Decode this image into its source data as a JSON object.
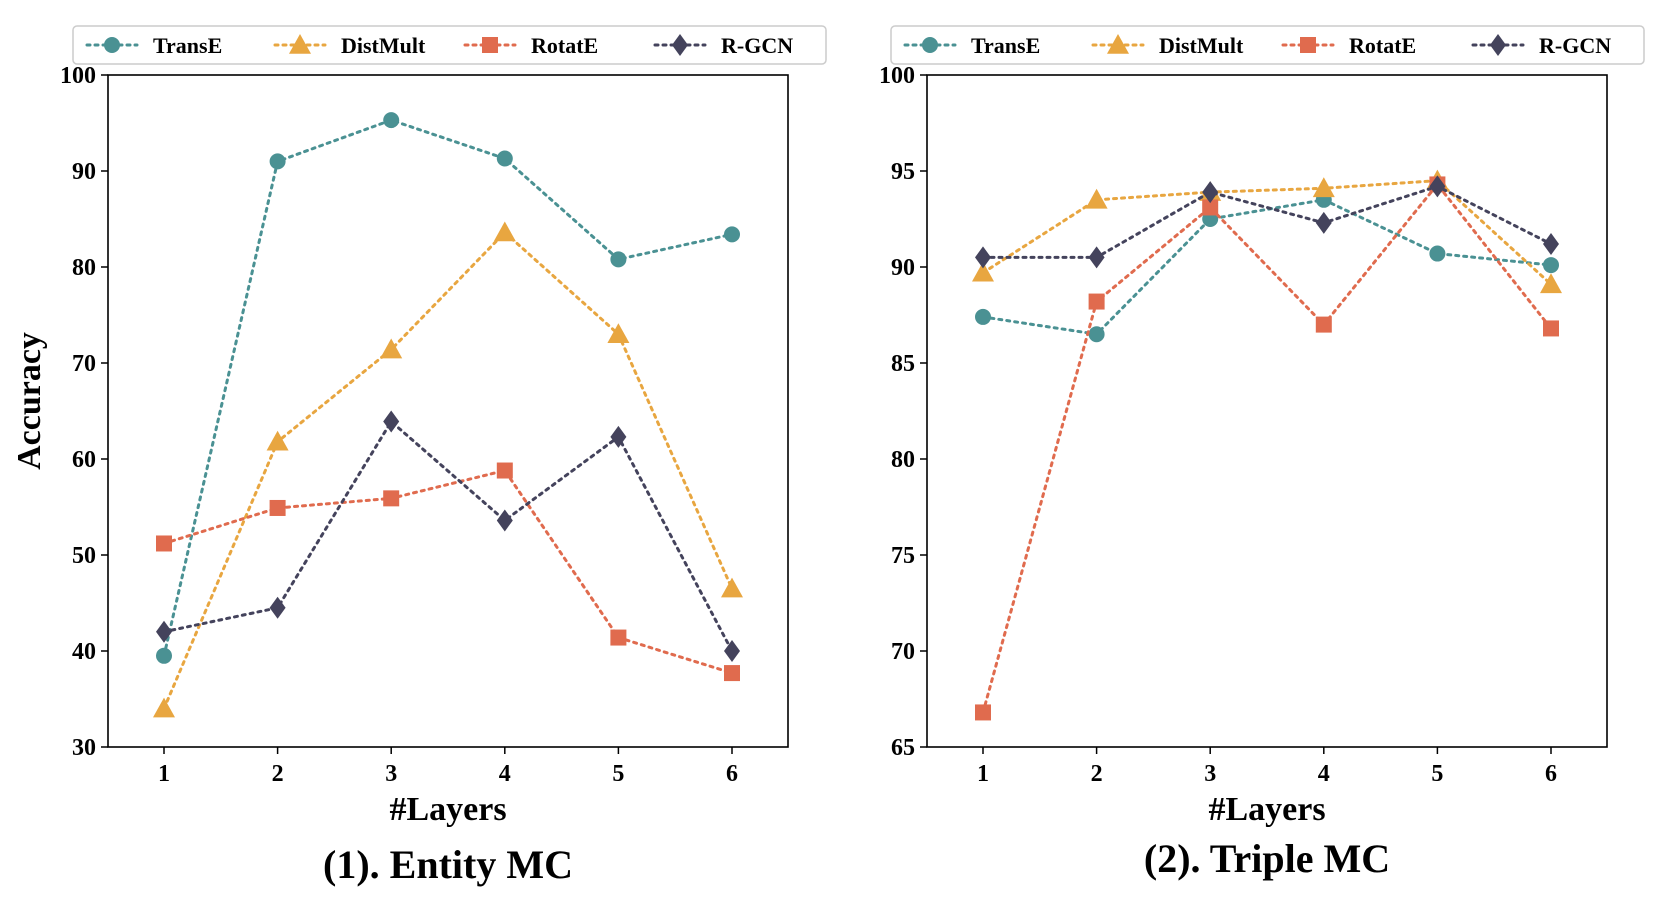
{
  "chart_data": [
    {
      "type": "line",
      "title": "(1). Entity MC",
      "xlabel": "#Layers",
      "ylabel": "Accuracy",
      "x": [
        1,
        2,
        3,
        4,
        5,
        6
      ],
      "ylim": [
        30,
        100
      ],
      "yticks": [
        30,
        40,
        50,
        60,
        70,
        80,
        90,
        100
      ],
      "series": [
        {
          "name": "TransE",
          "color": "#4a9193",
          "marker": "circle",
          "values": [
            39.5,
            91.0,
            95.3,
            91.3,
            80.8,
            83.4
          ]
        },
        {
          "name": "DistMult",
          "color": "#e8a640",
          "marker": "triangle",
          "values": [
            34.0,
            61.8,
            71.4,
            83.6,
            73.0,
            46.5
          ]
        },
        {
          "name": "RotatE",
          "color": "#e06b4e",
          "marker": "square",
          "values": [
            51.2,
            54.9,
            55.9,
            58.8,
            41.4,
            37.7
          ]
        },
        {
          "name": "R-GCN",
          "color": "#44435c",
          "marker": "diamond",
          "values": [
            42.0,
            44.5,
            63.9,
            53.6,
            62.3,
            40.0
          ]
        }
      ],
      "legend_position": "top"
    },
    {
      "type": "line",
      "title": "(2). Triple MC",
      "xlabel": "#Layers",
      "ylabel": "",
      "x": [
        1,
        2,
        3,
        4,
        5,
        6
      ],
      "ylim": [
        65,
        100
      ],
      "yticks": [
        65,
        70,
        75,
        80,
        85,
        90,
        95,
        100
      ],
      "series": [
        {
          "name": "TransE",
          "color": "#4a9193",
          "marker": "circle",
          "values": [
            87.4,
            86.5,
            92.5,
            93.5,
            90.7,
            90.1
          ]
        },
        {
          "name": "DistMult",
          "color": "#e8a640",
          "marker": "triangle",
          "values": [
            89.7,
            93.5,
            93.9,
            94.1,
            94.5,
            89.1
          ]
        },
        {
          "name": "RotatE",
          "color": "#e06b4e",
          "marker": "square",
          "values": [
            66.8,
            88.2,
            93.1,
            87.0,
            94.3,
            86.8
          ]
        },
        {
          "name": "R-GCN",
          "color": "#44435c",
          "marker": "diamond",
          "values": [
            90.5,
            90.5,
            93.9,
            92.3,
            94.2,
            91.2
          ]
        }
      ],
      "legend_position": "top"
    }
  ]
}
